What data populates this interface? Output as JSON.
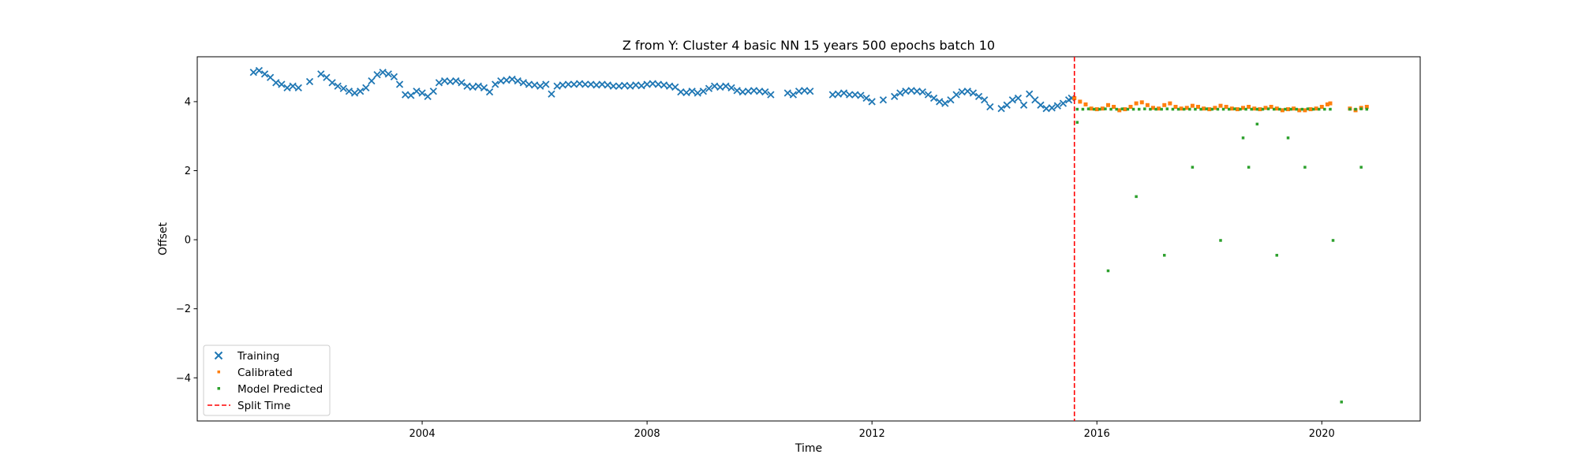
{
  "chart_data": {
    "type": "scatter",
    "title": "Z from Y: Cluster 4 basic NN 15 years 500 epochs batch 10",
    "xlabel": "Time",
    "ylabel": "Offset",
    "xlim": [
      2000.0,
      2021.75
    ],
    "ylim": [
      -5.25,
      5.3
    ],
    "x_ticks": [
      2004,
      2008,
      2012,
      2016,
      2020
    ],
    "x_tick_labels": [
      "2004",
      "2008",
      "2012",
      "2016",
      "2020"
    ],
    "y_ticks": [
      -4,
      -2,
      0,
      2,
      4
    ],
    "y_tick_labels": [
      "−4",
      "−2",
      "0",
      "2",
      "4"
    ],
    "grid": false,
    "legend_position": "lower-left",
    "split_time": 2015.6,
    "series": [
      {
        "name": "Training",
        "marker": "x",
        "color": "#1f77b4",
        "points": [
          [
            2001.0,
            4.85
          ],
          [
            2001.1,
            4.9
          ],
          [
            2001.2,
            4.8
          ],
          [
            2001.3,
            4.7
          ],
          [
            2001.4,
            4.55
          ],
          [
            2001.5,
            4.5
          ],
          [
            2001.6,
            4.4
          ],
          [
            2001.7,
            4.45
          ],
          [
            2001.8,
            4.4
          ],
          [
            2002.0,
            4.58
          ],
          [
            2002.2,
            4.8
          ],
          [
            2002.3,
            4.7
          ],
          [
            2002.4,
            4.55
          ],
          [
            2002.5,
            4.45
          ],
          [
            2002.6,
            4.38
          ],
          [
            2002.7,
            4.3
          ],
          [
            2002.8,
            4.25
          ],
          [
            2002.9,
            4.3
          ],
          [
            2003.0,
            4.4
          ],
          [
            2003.1,
            4.6
          ],
          [
            2003.2,
            4.78
          ],
          [
            2003.3,
            4.85
          ],
          [
            2003.4,
            4.8
          ],
          [
            2003.5,
            4.72
          ],
          [
            2003.6,
            4.5
          ],
          [
            2003.7,
            4.2
          ],
          [
            2003.8,
            4.18
          ],
          [
            2003.9,
            4.3
          ],
          [
            2004.0,
            4.25
          ],
          [
            2004.1,
            4.15
          ],
          [
            2004.2,
            4.3
          ],
          [
            2004.3,
            4.55
          ],
          [
            2004.4,
            4.6
          ],
          [
            2004.5,
            4.58
          ],
          [
            2004.6,
            4.6
          ],
          [
            2004.7,
            4.55
          ],
          [
            2004.8,
            4.45
          ],
          [
            2004.9,
            4.42
          ],
          [
            2005.0,
            4.45
          ],
          [
            2005.1,
            4.4
          ],
          [
            2005.2,
            4.28
          ],
          [
            2005.3,
            4.5
          ],
          [
            2005.4,
            4.6
          ],
          [
            2005.5,
            4.62
          ],
          [
            2005.6,
            4.65
          ],
          [
            2005.7,
            4.6
          ],
          [
            2005.8,
            4.55
          ],
          [
            2005.9,
            4.5
          ],
          [
            2006.0,
            4.48
          ],
          [
            2006.1,
            4.45
          ],
          [
            2006.2,
            4.5
          ],
          [
            2006.3,
            4.22
          ],
          [
            2006.4,
            4.45
          ],
          [
            2006.5,
            4.48
          ],
          [
            2006.6,
            4.5
          ],
          [
            2006.7,
            4.5
          ],
          [
            2006.8,
            4.52
          ],
          [
            2006.9,
            4.5
          ],
          [
            2007.0,
            4.5
          ],
          [
            2007.1,
            4.48
          ],
          [
            2007.2,
            4.5
          ],
          [
            2007.3,
            4.48
          ],
          [
            2007.4,
            4.45
          ],
          [
            2007.5,
            4.45
          ],
          [
            2007.6,
            4.47
          ],
          [
            2007.7,
            4.45
          ],
          [
            2007.8,
            4.48
          ],
          [
            2007.9,
            4.46
          ],
          [
            2008.0,
            4.5
          ],
          [
            2008.1,
            4.52
          ],
          [
            2008.2,
            4.5
          ],
          [
            2008.3,
            4.48
          ],
          [
            2008.4,
            4.45
          ],
          [
            2008.5,
            4.42
          ],
          [
            2008.6,
            4.28
          ],
          [
            2008.7,
            4.26
          ],
          [
            2008.8,
            4.3
          ],
          [
            2008.9,
            4.25
          ],
          [
            2009.0,
            4.3
          ],
          [
            2009.1,
            4.38
          ],
          [
            2009.2,
            4.45
          ],
          [
            2009.3,
            4.42
          ],
          [
            2009.4,
            4.45
          ],
          [
            2009.5,
            4.4
          ],
          [
            2009.6,
            4.32
          ],
          [
            2009.7,
            4.28
          ],
          [
            2009.8,
            4.3
          ],
          [
            2009.9,
            4.32
          ],
          [
            2010.0,
            4.3
          ],
          [
            2010.1,
            4.28
          ],
          [
            2010.2,
            4.2
          ],
          [
            2010.5,
            4.25
          ],
          [
            2010.6,
            4.2
          ],
          [
            2010.7,
            4.3
          ],
          [
            2010.8,
            4.32
          ],
          [
            2010.9,
            4.3
          ],
          [
            2011.3,
            4.2
          ],
          [
            2011.4,
            4.22
          ],
          [
            2011.5,
            4.25
          ],
          [
            2011.6,
            4.2
          ],
          [
            2011.7,
            4.2
          ],
          [
            2011.8,
            4.18
          ],
          [
            2011.9,
            4.1
          ],
          [
            2012.0,
            4.0
          ],
          [
            2012.2,
            4.05
          ],
          [
            2012.4,
            4.15
          ],
          [
            2012.5,
            4.25
          ],
          [
            2012.6,
            4.3
          ],
          [
            2012.7,
            4.32
          ],
          [
            2012.8,
            4.3
          ],
          [
            2012.9,
            4.28
          ],
          [
            2013.0,
            4.2
          ],
          [
            2013.1,
            4.1
          ],
          [
            2013.2,
            4.0
          ],
          [
            2013.3,
            3.95
          ],
          [
            2013.4,
            4.05
          ],
          [
            2013.5,
            4.2
          ],
          [
            2013.6,
            4.28
          ],
          [
            2013.7,
            4.3
          ],
          [
            2013.8,
            4.25
          ],
          [
            2013.9,
            4.15
          ],
          [
            2014.0,
            4.05
          ],
          [
            2014.1,
            3.85
          ],
          [
            2014.3,
            3.8
          ],
          [
            2014.4,
            3.9
          ],
          [
            2014.5,
            4.05
          ],
          [
            2014.6,
            4.1
          ],
          [
            2014.7,
            3.9
          ],
          [
            2014.8,
            4.22
          ],
          [
            2014.9,
            4.05
          ],
          [
            2015.0,
            3.9
          ],
          [
            2015.1,
            3.8
          ],
          [
            2015.2,
            3.82
          ],
          [
            2015.3,
            3.88
          ],
          [
            2015.4,
            3.95
          ],
          [
            2015.5,
            4.05
          ],
          [
            2015.55,
            4.1
          ]
        ]
      },
      {
        "name": "Calibrated",
        "marker": "square",
        "color": "#ff7f0e",
        "points": [
          [
            2015.6,
            4.1
          ],
          [
            2015.7,
            4.0
          ],
          [
            2015.8,
            3.92
          ],
          [
            2015.9,
            3.8
          ],
          [
            2016.0,
            3.78
          ],
          [
            2016.1,
            3.8
          ],
          [
            2016.2,
            3.9
          ],
          [
            2016.3,
            3.85
          ],
          [
            2016.4,
            3.75
          ],
          [
            2016.5,
            3.78
          ],
          [
            2016.6,
            3.85
          ],
          [
            2016.7,
            3.95
          ],
          [
            2016.8,
            3.98
          ],
          [
            2016.9,
            3.9
          ],
          [
            2017.0,
            3.82
          ],
          [
            2017.1,
            3.8
          ],
          [
            2017.2,
            3.9
          ],
          [
            2017.3,
            3.95
          ],
          [
            2017.4,
            3.85
          ],
          [
            2017.5,
            3.8
          ],
          [
            2017.6,
            3.82
          ],
          [
            2017.7,
            3.88
          ],
          [
            2017.8,
            3.85
          ],
          [
            2017.9,
            3.8
          ],
          [
            2018.0,
            3.78
          ],
          [
            2018.1,
            3.82
          ],
          [
            2018.2,
            3.88
          ],
          [
            2018.3,
            3.85
          ],
          [
            2018.4,
            3.8
          ],
          [
            2018.5,
            3.78
          ],
          [
            2018.6,
            3.82
          ],
          [
            2018.7,
            3.85
          ],
          [
            2018.8,
            3.8
          ],
          [
            2018.9,
            3.78
          ],
          [
            2019.0,
            3.82
          ],
          [
            2019.1,
            3.85
          ],
          [
            2019.2,
            3.8
          ],
          [
            2019.3,
            3.75
          ],
          [
            2019.4,
            3.78
          ],
          [
            2019.5,
            3.8
          ],
          [
            2019.6,
            3.75
          ],
          [
            2019.7,
            3.75
          ],
          [
            2019.8,
            3.78
          ],
          [
            2019.9,
            3.8
          ],
          [
            2020.0,
            3.85
          ],
          [
            2020.1,
            3.92
          ],
          [
            2020.15,
            3.95
          ],
          [
            2020.5,
            3.8
          ],
          [
            2020.6,
            3.75
          ],
          [
            2020.7,
            3.82
          ],
          [
            2020.8,
            3.85
          ]
        ]
      },
      {
        "name": "Model Predicted",
        "marker": "square",
        "color": "#2ca02c",
        "points": [
          [
            2015.65,
            3.78
          ],
          [
            2015.75,
            3.78
          ],
          [
            2015.85,
            3.79
          ],
          [
            2015.95,
            3.78
          ],
          [
            2016.05,
            3.78
          ],
          [
            2016.15,
            3.79
          ],
          [
            2016.25,
            3.78
          ],
          [
            2016.35,
            3.78
          ],
          [
            2016.45,
            3.79
          ],
          [
            2016.55,
            3.78
          ],
          [
            2016.65,
            3.78
          ],
          [
            2016.75,
            3.78
          ],
          [
            2016.85,
            3.79
          ],
          [
            2016.95,
            3.78
          ],
          [
            2017.05,
            3.78
          ],
          [
            2017.15,
            3.78
          ],
          [
            2017.25,
            3.79
          ],
          [
            2017.35,
            3.78
          ],
          [
            2017.45,
            3.78
          ],
          [
            2017.55,
            3.78
          ],
          [
            2017.65,
            3.78
          ],
          [
            2017.75,
            3.78
          ],
          [
            2017.85,
            3.78
          ],
          [
            2017.95,
            3.79
          ],
          [
            2018.05,
            3.78
          ],
          [
            2018.15,
            3.78
          ],
          [
            2018.25,
            3.78
          ],
          [
            2018.35,
            3.78
          ],
          [
            2018.45,
            3.79
          ],
          [
            2018.55,
            3.78
          ],
          [
            2018.65,
            3.78
          ],
          [
            2018.75,
            3.78
          ],
          [
            2018.85,
            3.78
          ],
          [
            2018.95,
            3.78
          ],
          [
            2019.05,
            3.79
          ],
          [
            2019.15,
            3.78
          ],
          [
            2019.25,
            3.78
          ],
          [
            2019.35,
            3.78
          ],
          [
            2019.45,
            3.78
          ],
          [
            2019.55,
            3.78
          ],
          [
            2019.65,
            3.78
          ],
          [
            2019.75,
            3.79
          ],
          [
            2019.85,
            3.78
          ],
          [
            2019.95,
            3.78
          ],
          [
            2020.05,
            3.78
          ],
          [
            2020.15,
            3.78
          ],
          [
            2020.5,
            3.78
          ],
          [
            2020.6,
            3.78
          ],
          [
            2020.7,
            3.79
          ],
          [
            2020.8,
            3.78
          ],
          [
            2015.65,
            3.4
          ],
          [
            2016.2,
            -0.9
          ],
          [
            2016.7,
            1.25
          ],
          [
            2017.2,
            -0.45
          ],
          [
            2017.7,
            2.1
          ],
          [
            2018.2,
            -0.02
          ],
          [
            2018.6,
            2.95
          ],
          [
            2018.7,
            2.1
          ],
          [
            2018.85,
            3.35
          ],
          [
            2019.2,
            -0.45
          ],
          [
            2019.4,
            2.95
          ],
          [
            2019.7,
            2.1
          ],
          [
            2020.2,
            -0.02
          ],
          [
            2020.35,
            -4.7
          ],
          [
            2020.7,
            2.1
          ]
        ]
      }
    ],
    "reference_lines": [
      {
        "name": "Split Time",
        "orientation": "vertical",
        "x": 2015.6,
        "color": "#ff0000",
        "style": "dashed"
      }
    ]
  },
  "legend": [
    {
      "label": "Training",
      "marker": "x",
      "color": "#1f77b4"
    },
    {
      "label": "Calibrated",
      "marker": "square",
      "color": "#ff7f0e"
    },
    {
      "label": "Model Predicted",
      "marker": "square",
      "color": "#2ca02c"
    },
    {
      "label": "Split Time",
      "marker": "dashed-line",
      "color": "#ff0000"
    }
  ]
}
